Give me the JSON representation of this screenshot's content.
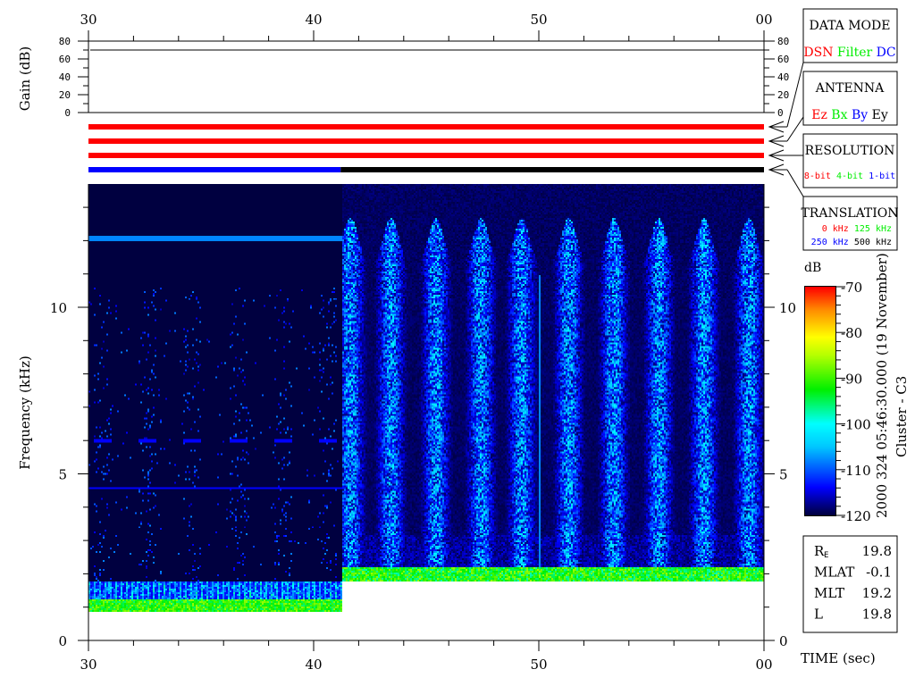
{
  "gain_panel": {
    "ylabel": "Gain (dB)",
    "ticks": [
      "0",
      "20",
      "40",
      "60",
      "80"
    ],
    "ylim": [
      0,
      80
    ],
    "gain_value_db": 70
  },
  "time_axis": {
    "ticks": [
      "30",
      "40",
      "50",
      "00"
    ],
    "label": "TIME (sec)"
  },
  "mode_bars": [
    {
      "name": "data-mode",
      "segments": [
        {
          "from": 30,
          "to": 60,
          "color": "#ff0000"
        }
      ]
    },
    {
      "name": "antenna",
      "segments": [
        {
          "from": 30,
          "to": 60,
          "color": "#ff0000"
        }
      ]
    },
    {
      "name": "resolution",
      "segments": [
        {
          "from": 30,
          "to": 60,
          "color": "#ff0000"
        }
      ]
    },
    {
      "name": "translation",
      "segments": [
        {
          "from": 30,
          "to": 41.2,
          "color": "#0000ff"
        },
        {
          "from": 41.2,
          "to": 60,
          "color": "#000000"
        }
      ]
    }
  ],
  "legend_boxes": {
    "data_mode": {
      "title": "DATA MODE",
      "items": [
        {
          "label": "DSN",
          "color": "#ff0000"
        },
        {
          "label": "Filter",
          "color": "#00ee00"
        },
        {
          "label": "DC",
          "color": "#0000ff"
        }
      ]
    },
    "antenna": {
      "title": "ANTENNA",
      "items": [
        {
          "label": "Ez",
          "color": "#ff0000"
        },
        {
          "label": "Bx",
          "color": "#00ee00"
        },
        {
          "label": "By",
          "color": "#0000ff"
        },
        {
          "label": "Ey",
          "color": "#000000"
        }
      ]
    },
    "resolution": {
      "title": "RESOLUTION",
      "items": [
        {
          "label": "8-bit",
          "color": "#ff0000"
        },
        {
          "label": "4-bit",
          "color": "#00ee00"
        },
        {
          "label": "1-bit",
          "color": "#0000ff"
        }
      ]
    },
    "translation": {
      "title": "TRANSLATION",
      "items": [
        {
          "label": "0 kHz",
          "color": "#ff0000"
        },
        {
          "label": "125 kHz",
          "color": "#00ee00"
        },
        {
          "label": "250 kHz",
          "color": "#0000ff"
        },
        {
          "label": "500 kHz",
          "color": "#000000"
        }
      ]
    }
  },
  "colorbar": {
    "unit": "dB",
    "ticks": [
      "-70",
      "-80",
      "-90",
      "-100",
      "-110",
      "-120"
    ],
    "range": [
      -120,
      -70
    ]
  },
  "header_vertical": {
    "timestamp": "2000 324 05:46:30.000 (19 November)",
    "spacecraft": "Cluster - C3"
  },
  "orbit_info": [
    {
      "label": "R",
      "sub": "E",
      "value": "19.8"
    },
    {
      "label": "MLAT",
      "sub": "",
      "value": "-0.1"
    },
    {
      "label": "MLT",
      "sub": "",
      "value": "19.2"
    },
    {
      "label": "L",
      "sub": "",
      "value": "19.8"
    }
  ],
  "chart_data": {
    "type": "heatmap",
    "xlabel": "TIME (sec)",
    "ylabel": "Frequency (kHz)",
    "xlim": [
      30,
      60
    ],
    "ylim": [
      0,
      13.7
    ],
    "x_ticks": [
      "30",
      "40",
      "50",
      "00"
    ],
    "y_ticks": [
      "0",
      "5",
      "10"
    ],
    "colorscale_db": [
      -120,
      -70
    ],
    "segments": [
      {
        "from": 30,
        "to": 41.2,
        "band_khz": [
          0.9,
          1.8
        ],
        "band_db": -95,
        "tone_khz": 12.1,
        "tone_db": -108
      },
      {
        "from": 41.2,
        "to": 60,
        "band_khz": [
          1.8,
          2.2
        ],
        "band_db": -92,
        "burst_centers_s": [
          41.6,
          43.4,
          45.4,
          47.4,
          49.2,
          51.3,
          53.3,
          55.3,
          57.3,
          59.3
        ],
        "burst_top_khz": 12.7,
        "burst_db": -108
      }
    ]
  }
}
